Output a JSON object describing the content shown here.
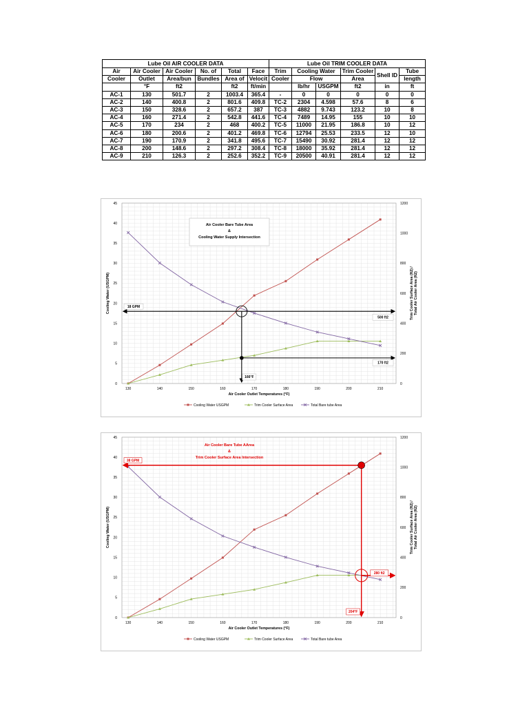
{
  "table": {
    "group_headers": [
      "Lube Oil AIR COOLER DATA",
      "Lube Oil TRIM COOLER DATA"
    ],
    "header_row1": [
      "Air",
      "Air Cooler",
      "Air Cooler",
      "No. of",
      "Total",
      "Face",
      "Trim",
      "Cooling Water",
      "Trim Cooler",
      "Shell ID",
      "Tube"
    ],
    "header_row2": [
      "Cooler",
      "Outlet",
      "Area/bun",
      "Bundles",
      "Area of",
      "Velocit",
      "Cooler",
      "Flow",
      "Area",
      "length"
    ],
    "units": [
      "°F",
      "ft2",
      "ft2",
      "ft/min",
      "lb/hr",
      "USGPM",
      "ft2",
      "in",
      "ft"
    ],
    "rows": [
      [
        "AC-1",
        "130",
        "501.7",
        "2",
        "1003.4",
        "365.4",
        "-",
        "0",
        "0",
        "0",
        "0",
        "0"
      ],
      [
        "AC-2",
        "140",
        "400.8",
        "2",
        "801.6",
        "409.8",
        "TC-2",
        "2304",
        "4.598",
        "57.6",
        "8",
        "6"
      ],
      [
        "AC-3",
        "150",
        "328.6",
        "2",
        "657.2",
        "387",
        "TC-3",
        "4882",
        "9.743",
        "123.2",
        "10",
        "8"
      ],
      [
        "AC-4",
        "160",
        "271.4",
        "2",
        "542.8",
        "441.6",
        "TC-4",
        "7489",
        "14.95",
        "155",
        "10",
        "10"
      ],
      [
        "AC-5",
        "170",
        "234",
        "2",
        "468",
        "400.2",
        "TC-5",
        "11000",
        "21.95",
        "186.8",
        "10",
        "12"
      ],
      [
        "AC-6",
        "180",
        "200.6",
        "2",
        "401.2",
        "469.8",
        "TC-6",
        "12794",
        "25.53",
        "233.5",
        "12",
        "10"
      ],
      [
        "AC-7",
        "190",
        "170.9",
        "2",
        "341.8",
        "495.6",
        "TC-7",
        "15490",
        "30.92",
        "281.4",
        "12",
        "12"
      ],
      [
        "AC-8",
        "200",
        "148.6",
        "2",
        "297.2",
        "308.4",
        "TC-8",
        "18000",
        "35.92",
        "281.4",
        "12",
        "12"
      ],
      [
        "AC-9",
        "210",
        "126.3",
        "2",
        "252.6",
        "352.2",
        "TC-9",
        "20500",
        "40.91",
        "281.4",
        "12",
        "12"
      ]
    ]
  },
  "chart_data": [
    {
      "type": "line",
      "title_lines": [
        "Air Cooler Bare Tube Area",
        "&",
        "Cooling Water Supply Intersection"
      ],
      "xlabel": "Air Cooler Outlet Temperatures (°F)",
      "ylabel": "Cooling Water (USGPM)",
      "y2label_lines": [
        "Trim Cooler Surface Area (ft2) /",
        "Total Air Cooler Area (ft2)"
      ],
      "x_ticks": [
        130,
        140,
        150,
        160,
        170,
        180,
        190,
        200,
        210
      ],
      "xlim": [
        128,
        215
      ],
      "ylim": [
        0,
        45
      ],
      "y_ticks": [
        0,
        5,
        10,
        15,
        20,
        25,
        30,
        35,
        40,
        45
      ],
      "y2lim": [
        0,
        1200
      ],
      "y2_ticks": [
        0,
        200,
        400,
        600,
        800,
        1000,
        1200
      ],
      "x_tick_labels": [
        "130",
        "140",
        "150",
        "160",
        "170",
        "180",
        "190",
        "200",
        "210"
      ],
      "y_tick_labels": [
        "0",
        "5",
        "10",
        "15",
        "20",
        "25",
        "30",
        "35",
        "40",
        "45"
      ],
      "y2_tick_labels": [
        "0",
        "200",
        "400",
        "600",
        "800",
        "1000",
        "1200"
      ],
      "series": [
        {
          "name": "Cooling Water USGPM",
          "axis": "left",
          "color": "#c0504d",
          "marker": "square",
          "x": [
            130,
            140,
            150,
            160,
            170,
            180,
            190,
            200,
            210
          ],
          "values": [
            0,
            4.598,
            9.743,
            14.95,
            21.95,
            25.53,
            30.92,
            35.92,
            40.91
          ]
        },
        {
          "name": "Trim Cooler Surface Area",
          "axis": "right",
          "color": "#9bbb59",
          "marker": "triangle",
          "x": [
            130,
            140,
            150,
            160,
            170,
            180,
            190,
            200,
            210
          ],
          "values": [
            0,
            57.6,
            123.2,
            155,
            186.8,
            233.5,
            281.4,
            281.4,
            281.4
          ]
        },
        {
          "name": "Total Bare tube Area",
          "axis": "right",
          "color": "#8064a2",
          "marker": "x",
          "x": [
            130,
            140,
            150,
            160,
            170,
            180,
            190,
            200,
            210
          ],
          "values": [
            1003.4,
            801.6,
            657.2,
            542.8,
            468,
            401.2,
            341.8,
            297.2,
            252.6
          ]
        }
      ],
      "annotations": {
        "hline_label": "18 GPM",
        "hline_y": 18,
        "right_label_top": "500 ft2",
        "right_top_y2": 500,
        "right_label_bottom": "170 ft2",
        "right_bottom_y2": 170,
        "vline_label": "166°F",
        "vline_x": 166,
        "color": "#000000"
      }
    },
    {
      "type": "line",
      "title_lines": [
        "Air Cooler Bare Tube AArea",
        "&",
        "Trim Cooler Surface Area Intersection"
      ],
      "xlabel": "Air Cooler Outlet Temperatures (°F)",
      "ylabel": "Cooling Water (USGPM)",
      "y2label_lines": [
        "Trim Cooler Surface Area (ft2) /",
        "Total Air Cooler Area (ft2)"
      ],
      "x_ticks": [
        130,
        140,
        150,
        160,
        170,
        180,
        190,
        200,
        210
      ],
      "xlim": [
        128,
        215
      ],
      "ylim": [
        0,
        45
      ],
      "y_ticks": [
        0,
        5,
        10,
        15,
        20,
        25,
        30,
        35,
        40,
        45
      ],
      "y2lim": [
        0,
        1200
      ],
      "y2_ticks": [
        0,
        200,
        400,
        600,
        800,
        1000,
        1200
      ],
      "x_tick_labels": [
        "130",
        "140",
        "150",
        "160",
        "170",
        "180",
        "190",
        "200",
        "210"
      ],
      "y_tick_labels": [
        "0",
        "5",
        "10",
        "15",
        "20",
        "25",
        "30",
        "35",
        "40",
        "45"
      ],
      "y2_tick_labels": [
        "0",
        "200",
        "400",
        "600",
        "800",
        "1000",
        "1200"
      ],
      "series": [
        {
          "name": "Cooling Water USGPM",
          "axis": "left",
          "color": "#c0504d",
          "marker": "square",
          "x": [
            130,
            140,
            150,
            160,
            170,
            180,
            190,
            200,
            210
          ],
          "values": [
            0,
            4.598,
            9.743,
            14.95,
            21.95,
            25.53,
            30.92,
            35.92,
            40.91
          ]
        },
        {
          "name": "Trim Cooler Surface Area",
          "axis": "right",
          "color": "#9bbb59",
          "marker": "triangle",
          "x": [
            130,
            140,
            150,
            160,
            170,
            180,
            190,
            200,
            210
          ],
          "values": [
            0,
            57.6,
            123.2,
            155,
            186.8,
            233.5,
            281.4,
            281.4,
            281.4
          ]
        },
        {
          "name": "Total Bare tube Area",
          "axis": "right",
          "color": "#8064a2",
          "marker": "x",
          "x": [
            130,
            140,
            150,
            160,
            170,
            180,
            190,
            200,
            210
          ],
          "values": [
            1003.4,
            801.6,
            657.2,
            542.8,
            468,
            401.2,
            341.8,
            297.2,
            252.6
          ]
        }
      ],
      "annotations": {
        "hline_label": "38 GPM",
        "hline_y": 38,
        "right_label_top": "",
        "right_label_bottom": "280 ft2",
        "right_bottom_y2": 280,
        "vline_label": "204°F",
        "vline_x": 204,
        "color": "#e00000"
      }
    }
  ]
}
